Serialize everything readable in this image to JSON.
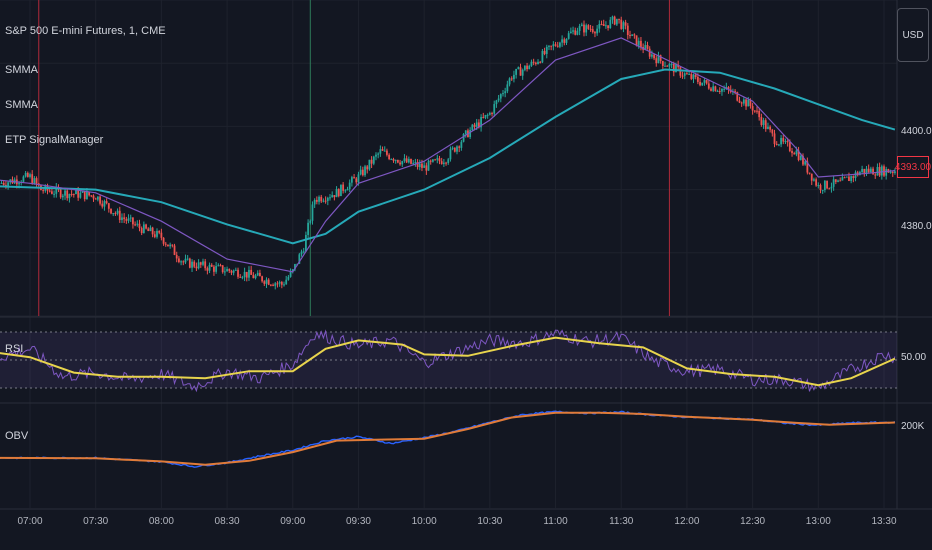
{
  "title": "S&P 500 E-mini Futures, 1, CME",
  "currency": "USD",
  "indicators": [
    "SMMA",
    "SMMA",
    "ETP SignalManager"
  ],
  "rsi_label": "RSI",
  "obv_label": "OBV",
  "last_price": "4393.00",
  "colors": {
    "background": "#131722",
    "grid": "#1e222d",
    "up": "#26a69a",
    "down": "#ef5350",
    "smma_fast": "#7e57c2",
    "smma_slow": "#26a9b8",
    "rsi": "#7e57c2",
    "rsi_ma": "#e8d44d",
    "obv": "#2962ff",
    "obv_ma": "#e07b39",
    "buy_marker": "#2e7d5b",
    "sell_marker": "#b02a3a"
  },
  "chart_data": [
    {
      "type": "candlestick",
      "title": "S&P 500 E-mini Futures, 1, CME",
      "y_ticks": [
        "4400.00",
        "4380.00"
      ],
      "ylim": [
        4370,
        4420
      ],
      "x_ticks": [
        "07:00",
        "07:30",
        "08:00",
        "08:30",
        "09:00",
        "09:30",
        "10:00",
        "10:30",
        "11:00",
        "11:30",
        "12:00",
        "12:30",
        "13:00",
        "13:30"
      ],
      "close_path": [
        [
          "06:46",
          4391.0
        ],
        [
          "07:00",
          4392.0
        ],
        [
          "07:05",
          4390.0
        ],
        [
          "07:15",
          4389.5
        ],
        [
          "07:30",
          4389.0
        ],
        [
          "07:40",
          4386.0
        ],
        [
          "07:50",
          4384.0
        ],
        [
          "08:00",
          4382.5
        ],
        [
          "08:10",
          4378.5
        ],
        [
          "08:25",
          4377.5
        ],
        [
          "08:35",
          4377.0
        ],
        [
          "08:45",
          4376.0
        ],
        [
          "08:55",
          4375.0
        ],
        [
          "09:00",
          4377.0
        ],
        [
          "09:05",
          4381.0
        ],
        [
          "09:10",
          4388.5
        ],
        [
          "09:20",
          4389.5
        ],
        [
          "09:30",
          4392.0
        ],
        [
          "09:40",
          4396.0
        ],
        [
          "09:50",
          4394.5
        ],
        [
          "10:00",
          4393.5
        ],
        [
          "10:10",
          4395.0
        ],
        [
          "10:20",
          4399.0
        ],
        [
          "10:30",
          4402.0
        ],
        [
          "10:40",
          4408.0
        ],
        [
          "10:50",
          4410.0
        ],
        [
          "11:00",
          4413.0
        ],
        [
          "11:10",
          4415.5
        ],
        [
          "11:20",
          4415.5
        ],
        [
          "11:28",
          4417.0
        ],
        [
          "11:35",
          4414.0
        ],
        [
          "11:45",
          4411.0
        ],
        [
          "12:00",
          4408.0
        ],
        [
          "12:10",
          4406.5
        ],
        [
          "12:20",
          4405.5
        ],
        [
          "12:30",
          4403.0
        ],
        [
          "12:40",
          4398.0
        ],
        [
          "12:50",
          4396.0
        ],
        [
          "13:00",
          4390.5
        ],
        [
          "13:10",
          4391.0
        ],
        [
          "13:20",
          4393.0
        ],
        [
          "13:30",
          4393.0
        ],
        [
          "13:35",
          4393.0
        ]
      ],
      "series": [
        {
          "name": "SMMA",
          "points": [
            [
              "06:46",
              4391.5
            ],
            [
              "07:00",
              4391.0
            ],
            [
              "07:30",
              4389.5
            ],
            [
              "08:00",
              4385.0
            ],
            [
              "08:30",
              4379.0
            ],
            [
              "09:00",
              4377.0
            ],
            [
              "09:15",
              4385.0
            ],
            [
              "09:30",
              4391.0
            ],
            [
              "10:00",
              4394.5
            ],
            [
              "10:30",
              4401.0
            ],
            [
              "11:00",
              4410.5
            ],
            [
              "11:30",
              4414.0
            ],
            [
              "12:00",
              4409.0
            ],
            [
              "12:30",
              4404.0
            ],
            [
              "12:50",
              4396.5
            ],
            [
              "13:00",
              4392.0
            ],
            [
              "13:20",
              4392.5
            ],
            [
              "13:35",
              4393.0
            ]
          ]
        },
        {
          "name": "SMMA",
          "points": [
            [
              "06:46",
              4390.5
            ],
            [
              "07:30",
              4390.0
            ],
            [
              "08:00",
              4388.0
            ],
            [
              "08:30",
              4384.5
            ],
            [
              "09:00",
              4381.5
            ],
            [
              "09:15",
              4383.0
            ],
            [
              "09:30",
              4386.5
            ],
            [
              "10:00",
              4390.0
            ],
            [
              "10:30",
              4395.0
            ],
            [
              "11:00",
              4401.5
            ],
            [
              "11:30",
              4407.5
            ],
            [
              "11:50",
              4409.0
            ],
            [
              "12:15",
              4408.5
            ],
            [
              "12:40",
              4406.0
            ],
            [
              "13:00",
              4403.5
            ],
            [
              "13:20",
              4401.0
            ],
            [
              "13:35",
              4399.5
            ]
          ]
        }
      ],
      "signals": [
        {
          "time": "07:04",
          "type": "sell"
        },
        {
          "time": "09:08",
          "type": "buy"
        },
        {
          "time": "11:52",
          "type": "sell"
        }
      ]
    },
    {
      "type": "line",
      "title": "RSI",
      "y_ticks": [
        "50.00"
      ],
      "ylim": [
        20,
        80
      ],
      "bands": [
        70,
        50,
        30
      ],
      "series": [
        {
          "name": "RSI",
          "points": [
            [
              "06:46",
              52
            ],
            [
              "07:00",
              58
            ],
            [
              "07:15",
              38
            ],
            [
              "07:30",
              41
            ],
            [
              "07:45",
              36
            ],
            [
              "08:00",
              40
            ],
            [
              "08:15",
              31
            ],
            [
              "08:30",
              42
            ],
            [
              "08:45",
              37
            ],
            [
              "09:00",
              47
            ],
            [
              "09:10",
              69
            ],
            [
              "09:30",
              60
            ],
            [
              "09:45",
              64
            ],
            [
              "10:00",
              48
            ],
            [
              "10:15",
              56
            ],
            [
              "10:30",
              64
            ],
            [
              "10:45",
              62
            ],
            [
              "11:00",
              69
            ],
            [
              "11:15",
              63
            ],
            [
              "11:30",
              66
            ],
            [
              "11:45",
              49
            ],
            [
              "12:00",
              42
            ],
            [
              "12:15",
              43
            ],
            [
              "12:30",
              36
            ],
            [
              "12:45",
              36
            ],
            [
              "13:00",
              30
            ],
            [
              "13:15",
              43
            ],
            [
              "13:30",
              54
            ],
            [
              "13:35",
              52
            ]
          ]
        },
        {
          "name": "RSI MA",
          "points": [
            [
              "06:46",
              55
            ],
            [
              "07:00",
              52
            ],
            [
              "07:20",
              41
            ],
            [
              "07:40",
              38
            ],
            [
              "08:00",
              38
            ],
            [
              "08:20",
              37
            ],
            [
              "08:40",
              42
            ],
            [
              "09:00",
              42
            ],
            [
              "09:15",
              58
            ],
            [
              "09:30",
              64
            ],
            [
              "09:50",
              61
            ],
            [
              "10:00",
              54
            ],
            [
              "10:20",
              53
            ],
            [
              "10:40",
              60
            ],
            [
              "11:00",
              66
            ],
            [
              "11:20",
              62
            ],
            [
              "11:40",
              59
            ],
            [
              "12:00",
              44
            ],
            [
              "12:20",
              40
            ],
            [
              "12:40",
              38
            ],
            [
              "13:00",
              32
            ],
            [
              "13:15",
              37
            ],
            [
              "13:35",
              51
            ]
          ]
        }
      ]
    },
    {
      "type": "line",
      "title": "OBV",
      "y_ticks": [
        "200K"
      ],
      "ylim": [
        -260,
        280
      ],
      "series": [
        {
          "name": "OBV",
          "points": [
            [
              "06:46",
              0
            ],
            [
              "07:30",
              0
            ],
            [
              "08:00",
              -20
            ],
            [
              "08:15",
              -45
            ],
            [
              "08:30",
              -25
            ],
            [
              "08:45",
              10
            ],
            [
              "09:00",
              40
            ],
            [
              "09:15",
              90
            ],
            [
              "09:30",
              110
            ],
            [
              "09:45",
              75
            ],
            [
              "10:00",
              105
            ],
            [
              "10:15",
              140
            ],
            [
              "10:30",
              185
            ],
            [
              "10:45",
              225
            ],
            [
              "11:00",
              240
            ],
            [
              "11:15",
              232
            ],
            [
              "11:30",
              238
            ],
            [
              "11:45",
              222
            ],
            [
              "12:00",
              212
            ],
            [
              "12:30",
              200
            ],
            [
              "12:45",
              180
            ],
            [
              "13:00",
              170
            ],
            [
              "13:15",
              182
            ],
            [
              "13:35",
              185
            ]
          ]
        },
        {
          "name": "OBV MA",
          "points": [
            [
              "06:46",
              0
            ],
            [
              "07:30",
              -2
            ],
            [
              "08:00",
              -18
            ],
            [
              "08:20",
              -35
            ],
            [
              "08:40",
              -15
            ],
            [
              "09:00",
              30
            ],
            [
              "09:20",
              90
            ],
            [
              "09:40",
              95
            ],
            [
              "10:00",
              100
            ],
            [
              "10:20",
              150
            ],
            [
              "10:40",
              210
            ],
            [
              "11:00",
              235
            ],
            [
              "11:20",
              235
            ],
            [
              "11:40",
              228
            ],
            [
              "12:00",
              214
            ],
            [
              "12:30",
              198
            ],
            [
              "12:50",
              182
            ],
            [
              "13:05",
              172
            ],
            [
              "13:20",
              178
            ],
            [
              "13:35",
              184
            ]
          ]
        }
      ]
    }
  ]
}
